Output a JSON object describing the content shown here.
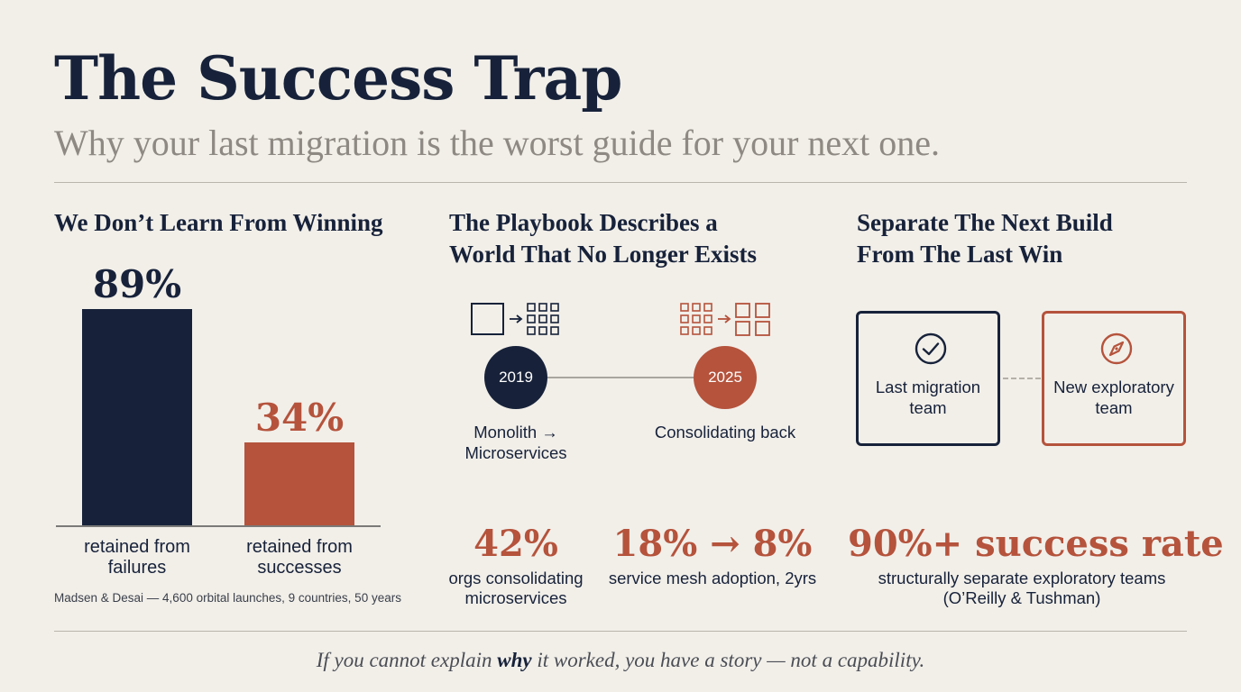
{
  "header": {
    "title": "The Success Trap",
    "subtitle": "Why your last migration is the worst guide for your next one."
  },
  "col1": {
    "heading": "We Don’t Learn From Winning",
    "chart_data": {
      "type": "bar",
      "categories": [
        "retained from failures",
        "retained from successes"
      ],
      "values": [
        89,
        34
      ],
      "value_labels": [
        "89%",
        "34%"
      ],
      "category_labels": [
        [
          "retained from",
          "failures"
        ],
        [
          "retained from",
          "successes"
        ]
      ],
      "ylim": [
        0,
        100
      ],
      "colors": [
        "#17223a",
        "#b5533c"
      ]
    },
    "source": "Madsen & Desai — 4,600 orbital launches, 9 countries, 50 years"
  },
  "col2": {
    "heading_lines": [
      "The Playbook Describes a",
      "World That No Longer Exists"
    ],
    "timeline": [
      {
        "year": "2019",
        "caption_lines": [
          "Monolith →",
          "Microservices"
        ],
        "color": "#17223a",
        "icon": "monolith-to-microservices-icon"
      },
      {
        "year": "2025",
        "caption_lines": [
          "Consolidating back"
        ],
        "color": "#b5533c",
        "icon": "microservices-to-modules-icon"
      }
    ],
    "stats": [
      {
        "value": "42%",
        "caption_lines": [
          "orgs consolidating",
          "microservices"
        ]
      },
      {
        "value": "18% → 8%",
        "caption_lines": [
          "service mesh adoption, 2yrs"
        ]
      }
    ]
  },
  "col3": {
    "heading_lines": [
      "Separate The Next Build",
      "From The Last Win"
    ],
    "teams": [
      {
        "label_lines": [
          "Last migration",
          "team"
        ],
        "color": "#17223a",
        "icon": "check-circle-icon"
      },
      {
        "label_lines": [
          "New exploratory",
          "team"
        ],
        "color": "#b5533c",
        "icon": "compass-icon"
      }
    ],
    "stat": {
      "value": "90%+ success rate",
      "caption_lines": [
        "structurally separate exploratory teams",
        "(O’Reilly & Tushman)"
      ]
    }
  },
  "footer": {
    "quote_before": "If you cannot explain ",
    "quote_emphasis": "why",
    "quote_after": " it worked, you have a story — not a capability."
  }
}
